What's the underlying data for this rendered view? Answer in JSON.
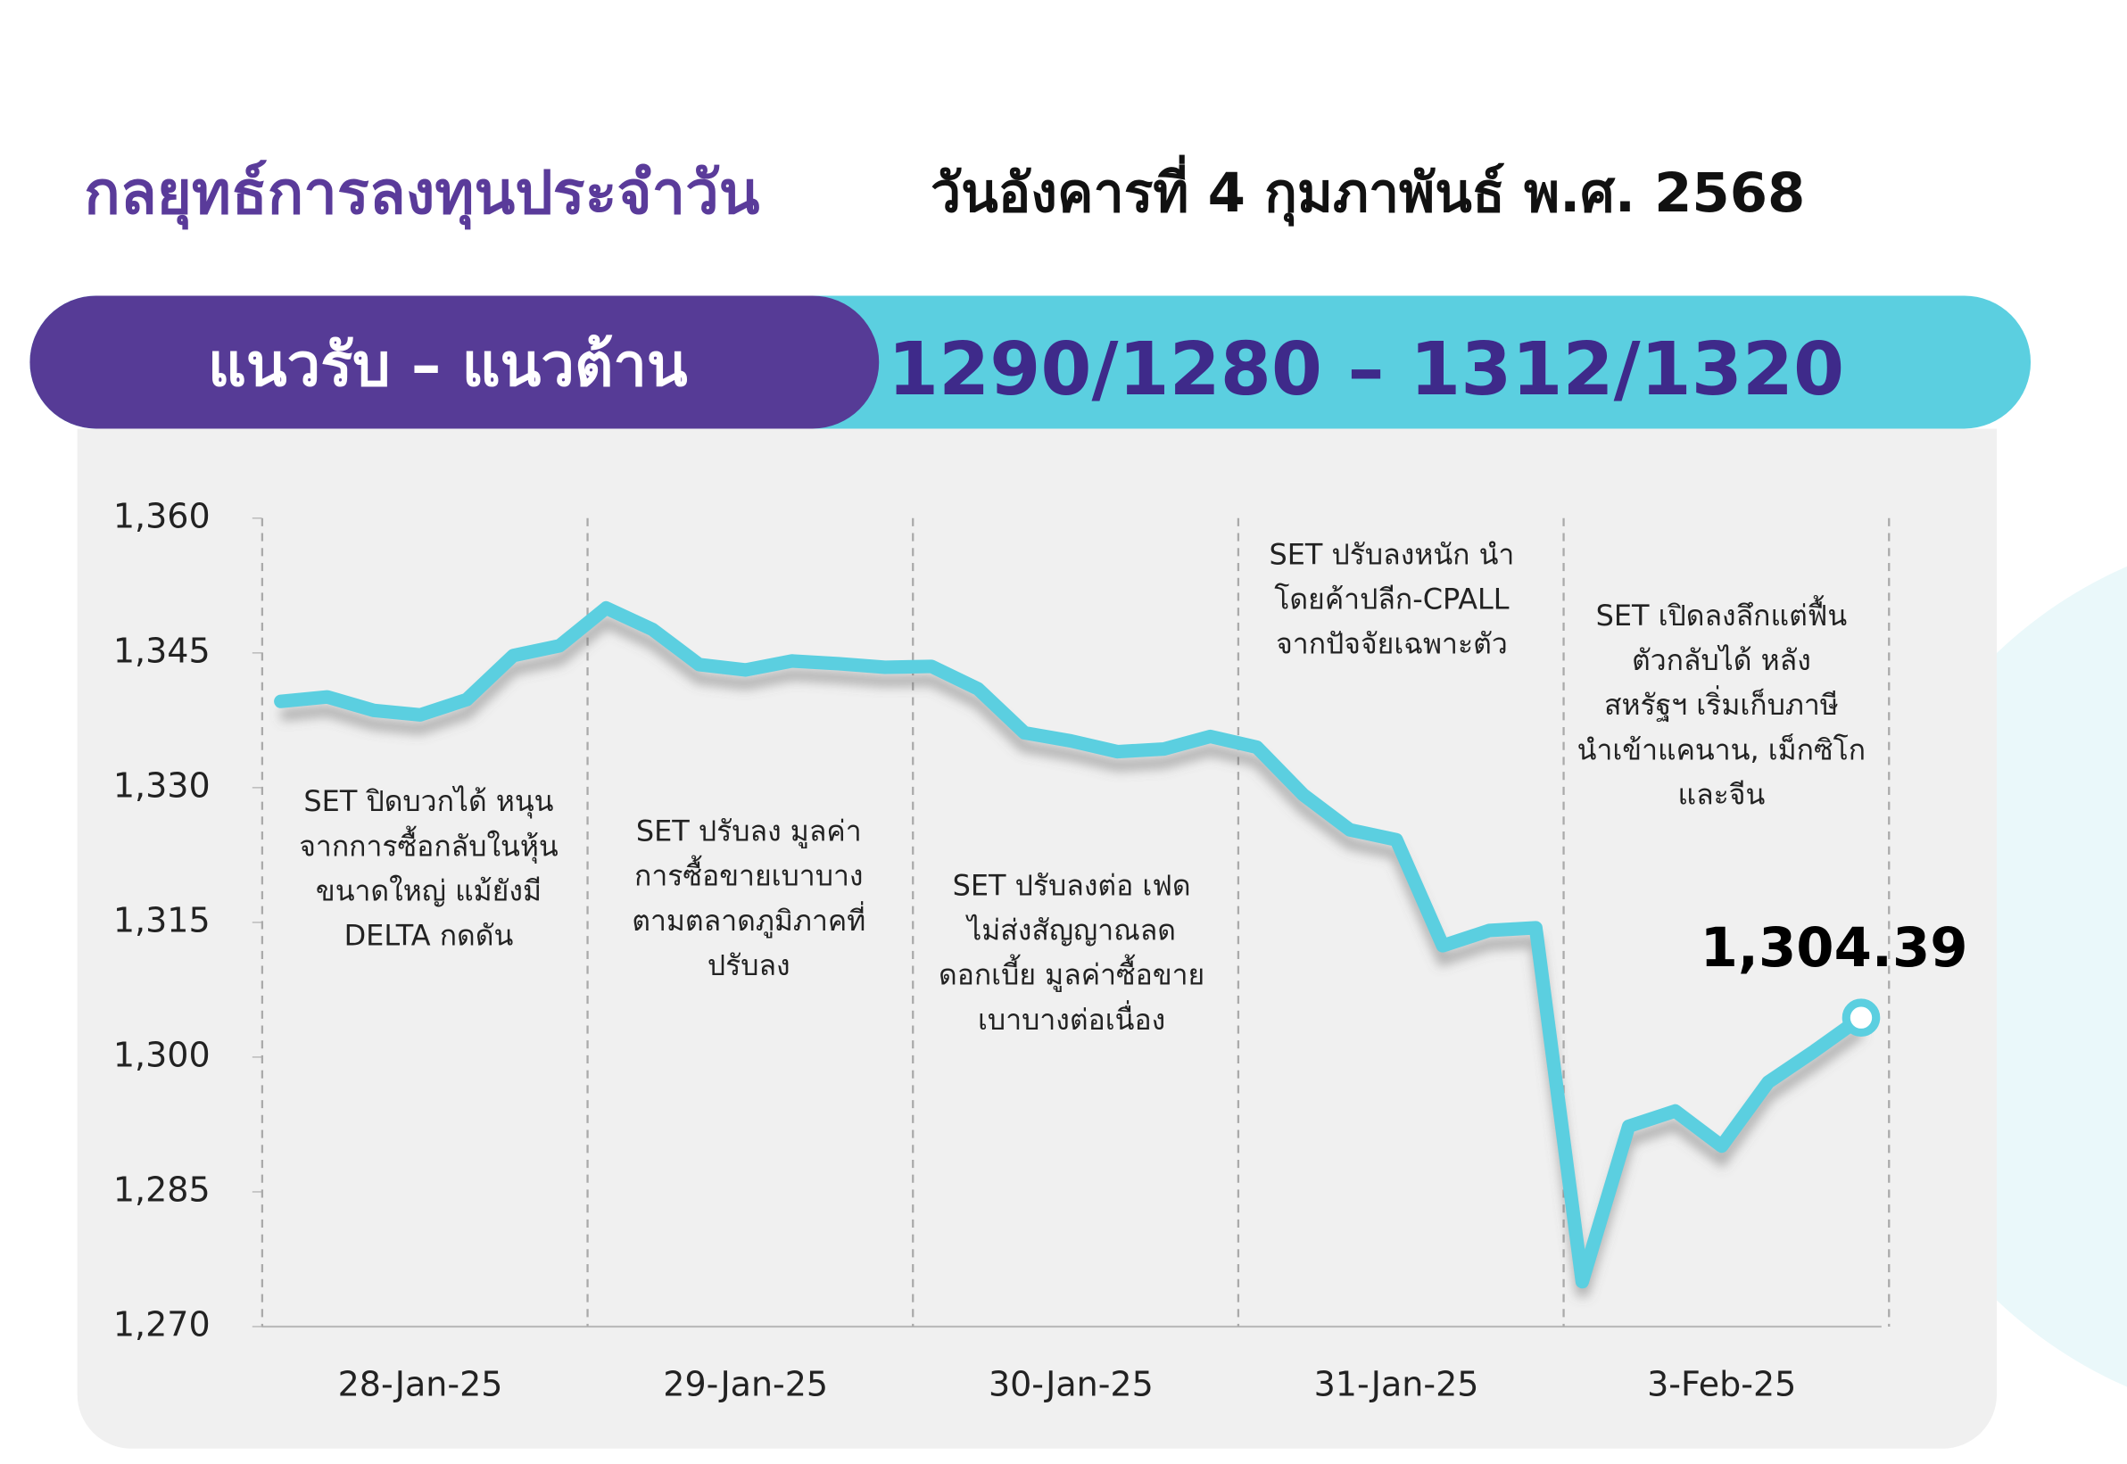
{
  "chart_data": {
    "type": "line",
    "title": "กลยุทธ์การลงทุนประจำวัน",
    "subtitle": "วันอังคารที่ 4 กุมภาพันธ์ พ.ศ. 2568",
    "banner_label": "แนวรับ – แนวต้าน",
    "banner_value": "1290/1280 – 1312/1320",
    "categories": [
      null,
      null,
      null,
      "28-Jan-25",
      null,
      null,
      null,
      null,
      null,
      null,
      "29-Jan-25",
      null,
      null,
      null,
      null,
      null,
      null,
      "30-Jan-25",
      null,
      null,
      null,
      null,
      null,
      null,
      "31-Jan-25",
      null,
      null,
      null,
      null,
      null,
      null,
      "3-Feb-25",
      null,
      null,
      null
    ],
    "series": [
      {
        "name": "SET",
        "color": "#5bcfe0",
        "values": [
          1339.6,
          1340.1,
          1338.6,
          1338.1,
          1339.8,
          1344.7,
          1345.8,
          1350.0,
          1347.6,
          1343.7,
          1343.1,
          1344.1,
          1343.8,
          1343.4,
          1343.5,
          1341.0,
          1336.1,
          1335.2,
          1334.0,
          1334.3,
          1335.7,
          1334.5,
          1329.2,
          1325.3,
          1324.2,
          1312.4,
          1314.1,
          1314.4,
          1275.0,
          1292.3,
          1294.0,
          1290.1,
          1297.2,
          1300.7,
          1304.39
        ],
        "value_labels": [
          null,
          null,
          null,
          null,
          null,
          null,
          null,
          null,
          null,
          null,
          null,
          null,
          null,
          null,
          null,
          null,
          null,
          null,
          null,
          null,
          null,
          null,
          null,
          null,
          null,
          null,
          null,
          null,
          null,
          null,
          null,
          null,
          null,
          null,
          "1,304.39"
        ]
      }
    ],
    "ylim": [
      1270,
      1360
    ],
    "yticks": [
      {
        "value": 1270,
        "label": "1,270"
      },
      {
        "value": 1285,
        "label": "1,285"
      },
      {
        "value": 1300,
        "label": "1,300"
      },
      {
        "value": 1315,
        "label": "1,315"
      },
      {
        "value": 1330,
        "label": "1,330"
      },
      {
        "value": 1345,
        "label": "1,345"
      },
      {
        "value": 1360,
        "label": "1,360"
      }
    ],
    "annotations": [
      {
        "lines": [
          "SET ปิดบวกได้ หนุน",
          "จากการซื้อกลับในหุ้น",
          "ขนาดใหญ่ แม้ยังมี",
          "DELTA กดดัน"
        ]
      },
      {
        "lines": [
          "SET ปรับลง มูลค่า",
          "การซื้อขายเบาบาง",
          "ตามตลาดภูมิภาคที่",
          "ปรับลง"
        ]
      },
      {
        "lines": [
          "SET ปรับลงต่อ เฟด",
          "ไม่ส่งสัญญาณลด",
          "ดอกเบี้ย มูลค่าซื้อขาย",
          "เบาบางต่อเนื่อง"
        ]
      },
      {
        "lines": [
          "SET ปรับลงหนัก นำ",
          "โดยค้าปลีก-CPALL",
          "จากปัจจัยเฉพาะตัว"
        ]
      },
      {
        "lines": [
          "SET เปิดลงลึกแต่ฟื้น",
          "ตัวกลับได้ หลัง",
          "สหรัฐฯ เริ่มเก็บภาษี",
          "นำเข้าแคนาน, เม็กซิโก",
          "และจีน"
        ]
      }
    ]
  }
}
